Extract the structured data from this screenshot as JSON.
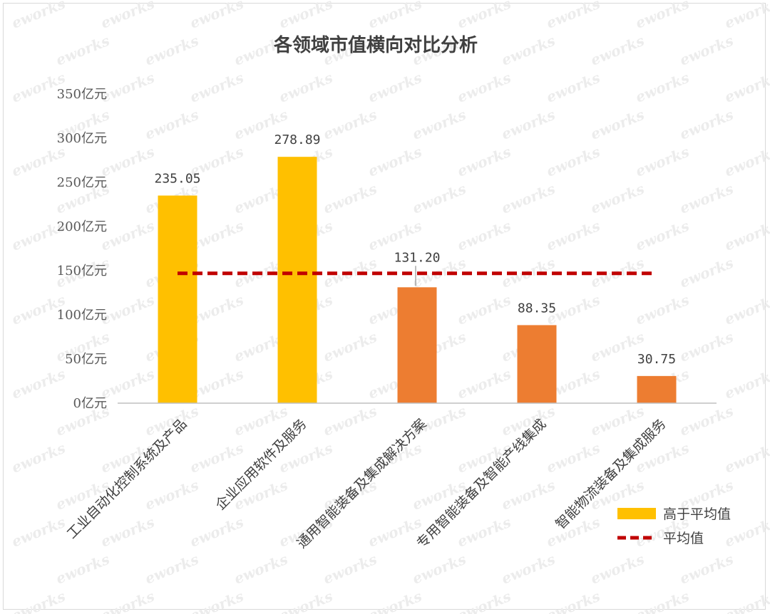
{
  "chart_data": {
    "type": "bar",
    "title": "各领域市值横向对比分析",
    "categories": [
      "工业自动化控制系统及产品",
      "企业应用软件及服务",
      "通用智能装备及集成解决方案",
      "专用智能装备及智能产线集成",
      "智能物流装备及集成服务"
    ],
    "values": [
      235.05,
      278.89,
      131.2,
      88.35,
      30.75
    ],
    "value_labels": [
      "235.05",
      "278.89",
      "131.20",
      "88.35",
      "30.75"
    ],
    "above_average": [
      true,
      true,
      false,
      false,
      false
    ],
    "average": 147,
    "ylim": [
      0,
      350
    ],
    "yticks": [
      0,
      50,
      100,
      150,
      200,
      250,
      300,
      350
    ],
    "ytick_suffix": "亿元",
    "colors": {
      "above_average": "#FFC000",
      "below_average": "#ED7D31",
      "average_line": "#C00000",
      "axis": "#bfbfbf"
    },
    "legend": {
      "position": "bottom-right",
      "items": [
        {
          "label": "高于平均值",
          "kind": "bar"
        },
        {
          "label": "平均值",
          "kind": "dashed-line"
        }
      ]
    },
    "grid": false
  },
  "watermark": {
    "text": "eworks"
  }
}
